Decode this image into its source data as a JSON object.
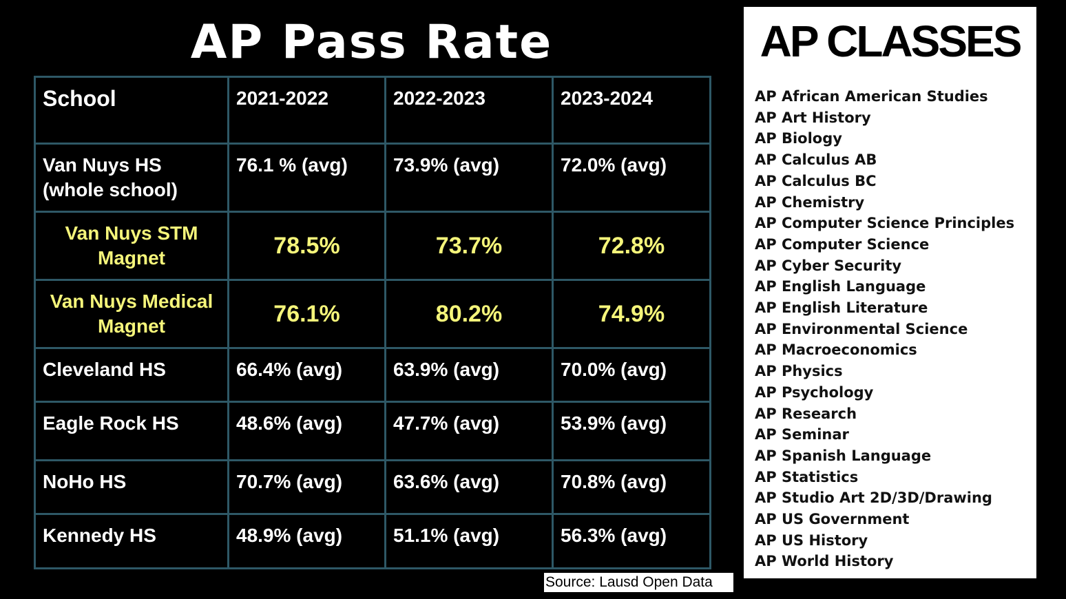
{
  "title": "AP Pass Rate",
  "table": {
    "headers": [
      "School",
      "2021-2022",
      "2022-2023",
      "2023-2024"
    ],
    "rows": [
      {
        "school": "Van Nuys HS (whole school)",
        "values": [
          "76.1 % (avg)",
          "73.9% (avg)",
          "72.0% (avg)"
        ],
        "highlight": false
      },
      {
        "school": "Van Nuys STM Magnet",
        "values": [
          "78.5%",
          "73.7%",
          "72.8%"
        ],
        "highlight": true
      },
      {
        "school": "Van Nuys Medical Magnet",
        "values": [
          "76.1%",
          "80.2%",
          "74.9%"
        ],
        "highlight": true
      },
      {
        "school": "Cleveland HS",
        "values": [
          "66.4% (avg)",
          "63.9% (avg)",
          "70.0% (avg)"
        ],
        "highlight": false
      },
      {
        "school": "Eagle Rock HS",
        "values": [
          "48.6% (avg)",
          "47.7% (avg)",
          "53.9% (avg)"
        ],
        "highlight": false
      },
      {
        "school": "NoHo HS",
        "values": [
          "70.7% (avg)",
          "63.6% (avg)",
          "70.8% (avg)"
        ],
        "highlight": false
      },
      {
        "school": "Kennedy HS",
        "values": [
          "48.9% (avg)",
          "51.1% (avg)",
          "56.3% (avg)"
        ],
        "highlight": false
      }
    ]
  },
  "source": "Source: Lausd Open Data",
  "classes": {
    "title": "AP CLASSES",
    "items": [
      "AP African American Studies",
      "AP Art History",
      "AP Biology",
      "AP Calculus AB",
      "AP Calculus BC",
      "AP Chemistry",
      "AP Computer Science Principles",
      "AP Computer Science",
      "AP Cyber Security",
      "AP English Language",
      "AP English Literature",
      "AP Environmental Science",
      "AP Macroeconomics",
      "AP Physics",
      "AP Psychology",
      "AP Research",
      "AP Seminar",
      "AP Spanish Language",
      "AP Statistics",
      "AP Studio Art 2D/3D/Drawing",
      "AP US Government",
      "AP US History",
      "AP World History"
    ]
  },
  "colors": {
    "highlight": "#f5f57a",
    "border": "#2e5866"
  }
}
